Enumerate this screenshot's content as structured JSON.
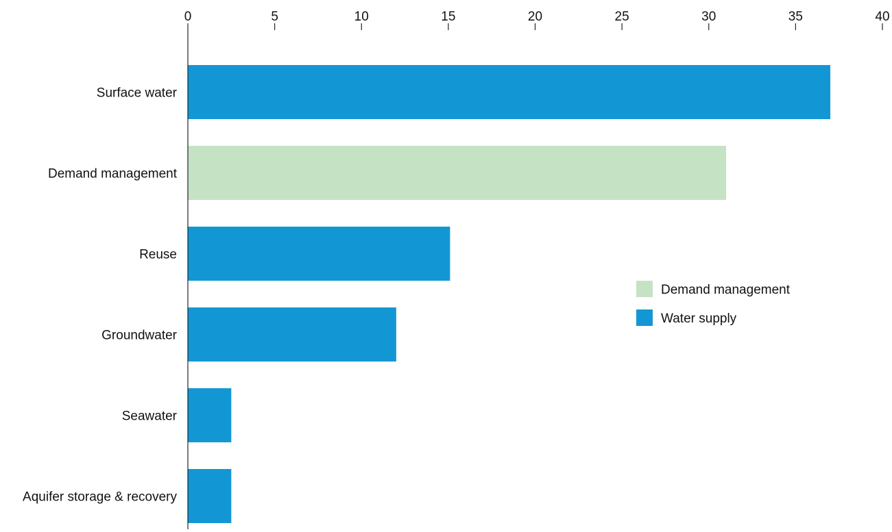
{
  "chart_data": {
    "type": "bar",
    "orientation": "horizontal",
    "title": "",
    "xlabel": "",
    "ylabel": "",
    "xlim": [
      0,
      40
    ],
    "x_ticks": [
      0,
      5,
      10,
      15,
      20,
      25,
      30,
      35,
      40
    ],
    "x_axis_position": "top",
    "grid": false,
    "legend_position": "right",
    "categories": [
      "Surface water",
      "Demand management",
      "Reuse",
      "Groundwater",
      "Seawater",
      "Aquifer storage & recovery"
    ],
    "values": [
      37,
      31,
      15.1,
      12,
      2.5,
      2.5
    ],
    "bar_group": [
      "Water supply",
      "Demand management",
      "Water supply",
      "Water supply",
      "Water supply",
      "Water supply"
    ],
    "legend": [
      {
        "name": "Demand management",
        "color": "#c5e3c4"
      },
      {
        "name": "Water supply",
        "color": "#1397d4"
      }
    ]
  }
}
